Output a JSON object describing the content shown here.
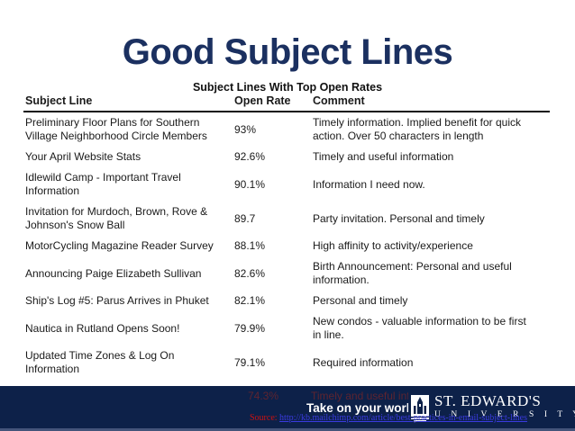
{
  "slide": {
    "title": "Good Subject Lines",
    "table_caption": "Subject Lines With Top Open Rates"
  },
  "table": {
    "headers": [
      "Subject Line",
      "Open Rate",
      "Comment"
    ],
    "rows": [
      {
        "subject": "Preliminary Floor Plans for Southern Village Neighborhood Circle Members",
        "rate": "93%",
        "comment": "Timely information. Implied benefit for quick action. Over 50 characters in length"
      },
      {
        "subject": "Your April Website Stats",
        "rate": "92.6%",
        "comment": "Timely and useful information"
      },
      {
        "subject": "Idlewild Camp - Important Travel Information",
        "rate": "90.1%",
        "comment": "Information I need now."
      },
      {
        "subject": "Invitation for Murdoch, Brown, Rove & Johnson's Snow Ball",
        "rate": "89.7",
        "comment": "Party invitation. Personal and timely"
      },
      {
        "subject": "MotorCycling Magazine Reader Survey",
        "rate": "88.1%",
        "comment": "High affinity to activity/experience"
      },
      {
        "subject": "Announcing Paige Elizabeth Sullivan",
        "rate": "82.6%",
        "comment": "Birth Announcement: Personal and useful information."
      },
      {
        "subject": "Ship's Log #5: Parus Arrives in Phuket",
        "rate": "82.1%",
        "comment": "Personal and timely"
      },
      {
        "subject": "Nautica in Rutland Opens Soon!",
        "rate": "79.9%",
        "comment": "New condos - valuable information to be first in line."
      },
      {
        "subject": "Updated Time Zones & Log On Information",
        "rate": "79.1%",
        "comment": "Required information"
      }
    ],
    "overflow_row": {
      "rate": "74.3%",
      "comment": "Timely and useful information"
    }
  },
  "footer": {
    "tagline": "Take on your world.",
    "tagline_mark": "®",
    "university_name": "ST. EDWARD'S",
    "university_subname": "U N I V E R S I T Y",
    "source_label": "Source:",
    "source_url": "http://kb.mailchimp.com/article/best-practices-in-email-subject-lines"
  },
  "colors": {
    "title_navy": "#1b3060",
    "band_navy": "#0d2149",
    "ghost_text_maroon": "#5e2430",
    "source_label_red": "#cc1111",
    "link_blue": "#3a3adf",
    "body_text": "#1a1a1a"
  }
}
